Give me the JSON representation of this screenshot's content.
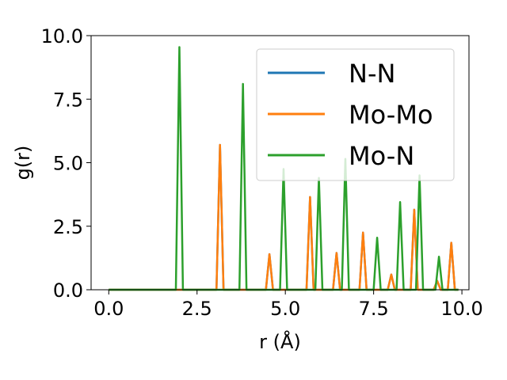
{
  "chart_data": {
    "type": "line",
    "xlabel": "r (Å)",
    "ylabel": "g(r)",
    "xlim": [
      -0.5,
      10.2
    ],
    "ylim": [
      0.0,
      10.0
    ],
    "xticks": [
      0.0,
      2.5,
      5.0,
      7.5,
      10.0
    ],
    "xtick_labels": [
      "0.0",
      "2.5",
      "5.0",
      "7.5",
      "10.0"
    ],
    "yticks": [
      0.0,
      2.5,
      5.0,
      7.5,
      10.0
    ],
    "ytick_labels": [
      "0.0",
      "2.5",
      "5.0",
      "7.5",
      "10.0"
    ],
    "grid": false,
    "legend_position": "top-right",
    "series": [
      {
        "name": "N-N",
        "color": "#1f77b4",
        "x": [
          0.0,
          3.05,
          3.15,
          3.25,
          4.45,
          4.55,
          4.65,
          5.6,
          5.7,
          5.8,
          6.35,
          6.45,
          6.55,
          7.1,
          7.2,
          7.3,
          7.9,
          8.0,
          8.1,
          8.55,
          8.65,
          8.75,
          9.2,
          9.3,
          9.4,
          9.6,
          9.7,
          9.8,
          9.9
        ],
        "y": [
          0.0,
          0.0,
          5.7,
          0.0,
          0.0,
          1.4,
          0.0,
          0.0,
          3.65,
          0.0,
          0.0,
          1.45,
          0.0,
          0.0,
          2.25,
          0.0,
          0.0,
          0.6,
          0.0,
          0.0,
          3.15,
          0.0,
          0.0,
          0.35,
          0.0,
          0.0,
          1.85,
          0.0,
          0.0
        ]
      },
      {
        "name": "Mo-Mo",
        "color": "#ff7f0e",
        "x": [
          0.0,
          3.05,
          3.15,
          3.25,
          4.45,
          4.55,
          4.65,
          5.6,
          5.7,
          5.8,
          6.35,
          6.45,
          6.55,
          7.1,
          7.2,
          7.3,
          7.9,
          8.0,
          8.1,
          8.55,
          8.65,
          8.75,
          9.2,
          9.3,
          9.4,
          9.6,
          9.7,
          9.8,
          9.9
        ],
        "y": [
          0.0,
          0.0,
          5.7,
          0.0,
          0.0,
          1.4,
          0.0,
          0.0,
          3.65,
          0.0,
          0.0,
          1.45,
          0.0,
          0.0,
          2.25,
          0.0,
          0.0,
          0.6,
          0.0,
          0.0,
          3.15,
          0.0,
          0.0,
          0.35,
          0.0,
          0.0,
          1.85,
          0.0,
          0.0
        ]
      },
      {
        "name": "Mo-N",
        "color": "#2ca02c",
        "x": [
          0.0,
          1.9,
          2.0,
          2.1,
          3.7,
          3.8,
          3.9,
          4.85,
          4.95,
          5.05,
          5.85,
          5.95,
          6.05,
          6.6,
          6.7,
          6.8,
          7.5,
          7.6,
          7.7,
          8.15,
          8.25,
          8.35,
          8.7,
          8.8,
          8.9,
          9.25,
          9.35,
          9.45,
          9.9
        ],
        "y": [
          0.0,
          0.0,
          9.55,
          0.0,
          0.0,
          8.1,
          0.0,
          0.0,
          4.75,
          0.0,
          0.0,
          4.4,
          0.0,
          0.0,
          5.15,
          0.0,
          0.0,
          2.05,
          0.0,
          0.0,
          3.45,
          0.0,
          0.0,
          4.5,
          0.0,
          0.0,
          1.3,
          0.0,
          0.0
        ]
      }
    ]
  }
}
